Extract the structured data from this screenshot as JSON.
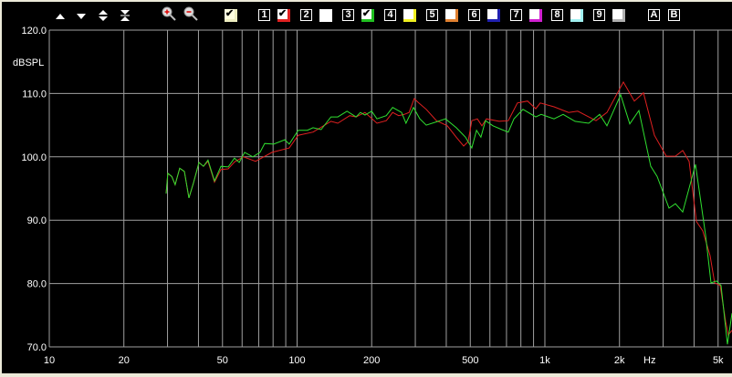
{
  "toolbar": {
    "icons": [
      "move-up-icon",
      "move-down-icon",
      "expand-icon",
      "collapse-icon",
      "zoom-in-icon",
      "zoom-out-icon"
    ],
    "master_checked": true,
    "channels": [
      {
        "label": "1",
        "color": "#e02020",
        "checked": true
      },
      {
        "label": "2",
        "color": "#ffffff",
        "checked": false
      },
      {
        "label": "3",
        "color": "#20c020",
        "checked": true
      },
      {
        "label": "4",
        "color": "#f0f020",
        "checked": false
      },
      {
        "label": "5",
        "color": "#e08030",
        "checked": false
      },
      {
        "label": "6",
        "color": "#2020b0",
        "checked": false
      },
      {
        "label": "7",
        "color": "#d020d0",
        "checked": false
      },
      {
        "label": "8",
        "color": "#a0f0f0",
        "checked": false
      },
      {
        "label": "9",
        "color": "#b0b0b0",
        "checked": false
      }
    ],
    "buttons": [
      "A",
      "B"
    ]
  },
  "chart_data": {
    "type": "line",
    "ylabel": "dBSPL",
    "xunit": "Hz",
    "xscale": "log",
    "xlim": [
      10,
      5690
    ],
    "ylim": [
      70,
      120
    ],
    "yticks": [
      "70.0",
      "80.0",
      "90.0",
      "100.0",
      "110.0",
      "120.0"
    ],
    "ytick_values": [
      70,
      80,
      90,
      100,
      110,
      120
    ],
    "xticks": [
      "10",
      "20",
      "50",
      "100",
      "200",
      "500",
      "1k",
      "2k",
      "5k"
    ],
    "xtick_values": [
      10,
      20,
      50,
      100,
      200,
      500,
      1000,
      2000,
      5000
    ],
    "xgrid_values": [
      10,
      20,
      30,
      40,
      50,
      60,
      70,
      80,
      90,
      100,
      200,
      300,
      400,
      500,
      600,
      700,
      800,
      900,
      1000,
      2000,
      3000,
      4000,
      5000
    ],
    "grid": true,
    "grid_color": "#a0a0a0",
    "background": "#000000",
    "series": [
      {
        "color": "#e02020",
        "points": [
          [
            29.6,
            94.2
          ],
          [
            30.1,
            97.4
          ],
          [
            31.2,
            96.9
          ],
          [
            32.2,
            95.6
          ],
          [
            33.6,
            98.2
          ],
          [
            35.1,
            97.7
          ],
          [
            36.6,
            93.5
          ],
          [
            38.2,
            95.9
          ],
          [
            40.2,
            99.1
          ],
          [
            41.9,
            98.5
          ],
          [
            43.7,
            99.3
          ],
          [
            46.4,
            96.0
          ],
          [
            49.3,
            98.0
          ],
          [
            52.7,
            98.1
          ],
          [
            55.9,
            99.2
          ],
          [
            60.7,
            100.0
          ],
          [
            68,
            99.3
          ],
          [
            79.2,
            100.7
          ],
          [
            93,
            101.4
          ],
          [
            101,
            103.4
          ],
          [
            116,
            103.9
          ],
          [
            137,
            105.6
          ],
          [
            146,
            105.3
          ],
          [
            163,
            106.5
          ],
          [
            173,
            106.3
          ],
          [
            177,
            106.5
          ],
          [
            188,
            107.0
          ],
          [
            210,
            105.3
          ],
          [
            229,
            105.7
          ],
          [
            243,
            107.0
          ],
          [
            257,
            106.5
          ],
          [
            271,
            106.7
          ],
          [
            283,
            107.0
          ],
          [
            297,
            109.2
          ],
          [
            308,
            108.6
          ],
          [
            332,
            107.5
          ],
          [
            365,
            105.7
          ],
          [
            404,
            104.9
          ],
          [
            439,
            103.1
          ],
          [
            470,
            101.7
          ],
          [
            490,
            102.4
          ],
          [
            507,
            105.7
          ],
          [
            534,
            106.0
          ],
          [
            557,
            104.9
          ],
          [
            581,
            106.0
          ],
          [
            654,
            105.6
          ],
          [
            712,
            105.7
          ],
          [
            775,
            108.5
          ],
          [
            851,
            108.8
          ],
          [
            919,
            107.6
          ],
          [
            958,
            108.5
          ],
          [
            1089,
            107.9
          ],
          [
            1247,
            107.0
          ],
          [
            1357,
            107.2
          ],
          [
            1608,
            105.7
          ],
          [
            1781,
            107.0
          ],
          [
            2074,
            111.8
          ],
          [
            2296,
            108.8
          ],
          [
            2500,
            110.1
          ],
          [
            2767,
            103.4
          ],
          [
            3090,
            100.1
          ],
          [
            3363,
            100.1
          ],
          [
            3599,
            101.0
          ],
          [
            3819,
            99.3
          ],
          [
            4087,
            89.8
          ],
          [
            4337,
            88.3
          ],
          [
            4642,
            84.4
          ],
          [
            4843,
            80.1
          ],
          [
            5096,
            79.7
          ],
          [
            5362,
            74.0
          ],
          [
            5500,
            71.9
          ],
          [
            5690,
            72.6
          ]
        ]
      },
      {
        "color": "#30e030",
        "points": [
          [
            29.6,
            94.2
          ],
          [
            30.1,
            97.4
          ],
          [
            31.2,
            96.9
          ],
          [
            32.2,
            95.6
          ],
          [
            33.6,
            98.2
          ],
          [
            35.1,
            97.7
          ],
          [
            36.6,
            93.5
          ],
          [
            38.2,
            95.9
          ],
          [
            40.2,
            99.1
          ],
          [
            41.9,
            98.5
          ],
          [
            43.7,
            99.5
          ],
          [
            46.4,
            96.2
          ],
          [
            49.3,
            98.5
          ],
          [
            52.7,
            98.4
          ],
          [
            55.9,
            99.8
          ],
          [
            58.4,
            99.1
          ],
          [
            61.4,
            100.7
          ],
          [
            66.3,
            100.0
          ],
          [
            70.9,
            100.7
          ],
          [
            74,
            102.1
          ],
          [
            80.5,
            102.0
          ],
          [
            89.2,
            102.7
          ],
          [
            93,
            102.0
          ],
          [
            101,
            104.2
          ],
          [
            110,
            104.2
          ],
          [
            116,
            104.6
          ],
          [
            125,
            104.3
          ],
          [
            137,
            106.3
          ],
          [
            146,
            106.3
          ],
          [
            159,
            107.2
          ],
          [
            173,
            106.3
          ],
          [
            180,
            107.0
          ],
          [
            188,
            106.6
          ],
          [
            200,
            107.2
          ],
          [
            210,
            106.0
          ],
          [
            229,
            106.5
          ],
          [
            243,
            107.8
          ],
          [
            264,
            107.0
          ],
          [
            275,
            105.3
          ],
          [
            295,
            107.8
          ],
          [
            313,
            106.0
          ],
          [
            332,
            105.0
          ],
          [
            371,
            105.6
          ],
          [
            397,
            106.0
          ],
          [
            439,
            104.6
          ],
          [
            478,
            103.1
          ],
          [
            507,
            101.4
          ],
          [
            530,
            104.2
          ],
          [
            552,
            103.1
          ],
          [
            576,
            105.7
          ],
          [
            617,
            104.9
          ],
          [
            671,
            104.3
          ],
          [
            712,
            103.9
          ],
          [
            750,
            106.0
          ],
          [
            816,
            107.5
          ],
          [
            919,
            106.3
          ],
          [
            966,
            106.7
          ],
          [
            1089,
            106.0
          ],
          [
            1185,
            106.7
          ],
          [
            1323,
            105.6
          ],
          [
            1503,
            105.3
          ],
          [
            1663,
            106.7
          ],
          [
            1781,
            104.9
          ],
          [
            2022,
            109.8
          ],
          [
            2200,
            105.2
          ],
          [
            2395,
            107.3
          ],
          [
            2675,
            98.5
          ],
          [
            2838,
            96.9
          ],
          [
            3170,
            91.9
          ],
          [
            3363,
            92.6
          ],
          [
            3599,
            91.3
          ],
          [
            4052,
            98.8
          ],
          [
            4449,
            87.7
          ],
          [
            4681,
            80.1
          ],
          [
            4925,
            80.4
          ],
          [
            5140,
            79.7
          ],
          [
            5454,
            70.4
          ],
          [
            5690,
            75.3
          ]
        ]
      }
    ]
  }
}
